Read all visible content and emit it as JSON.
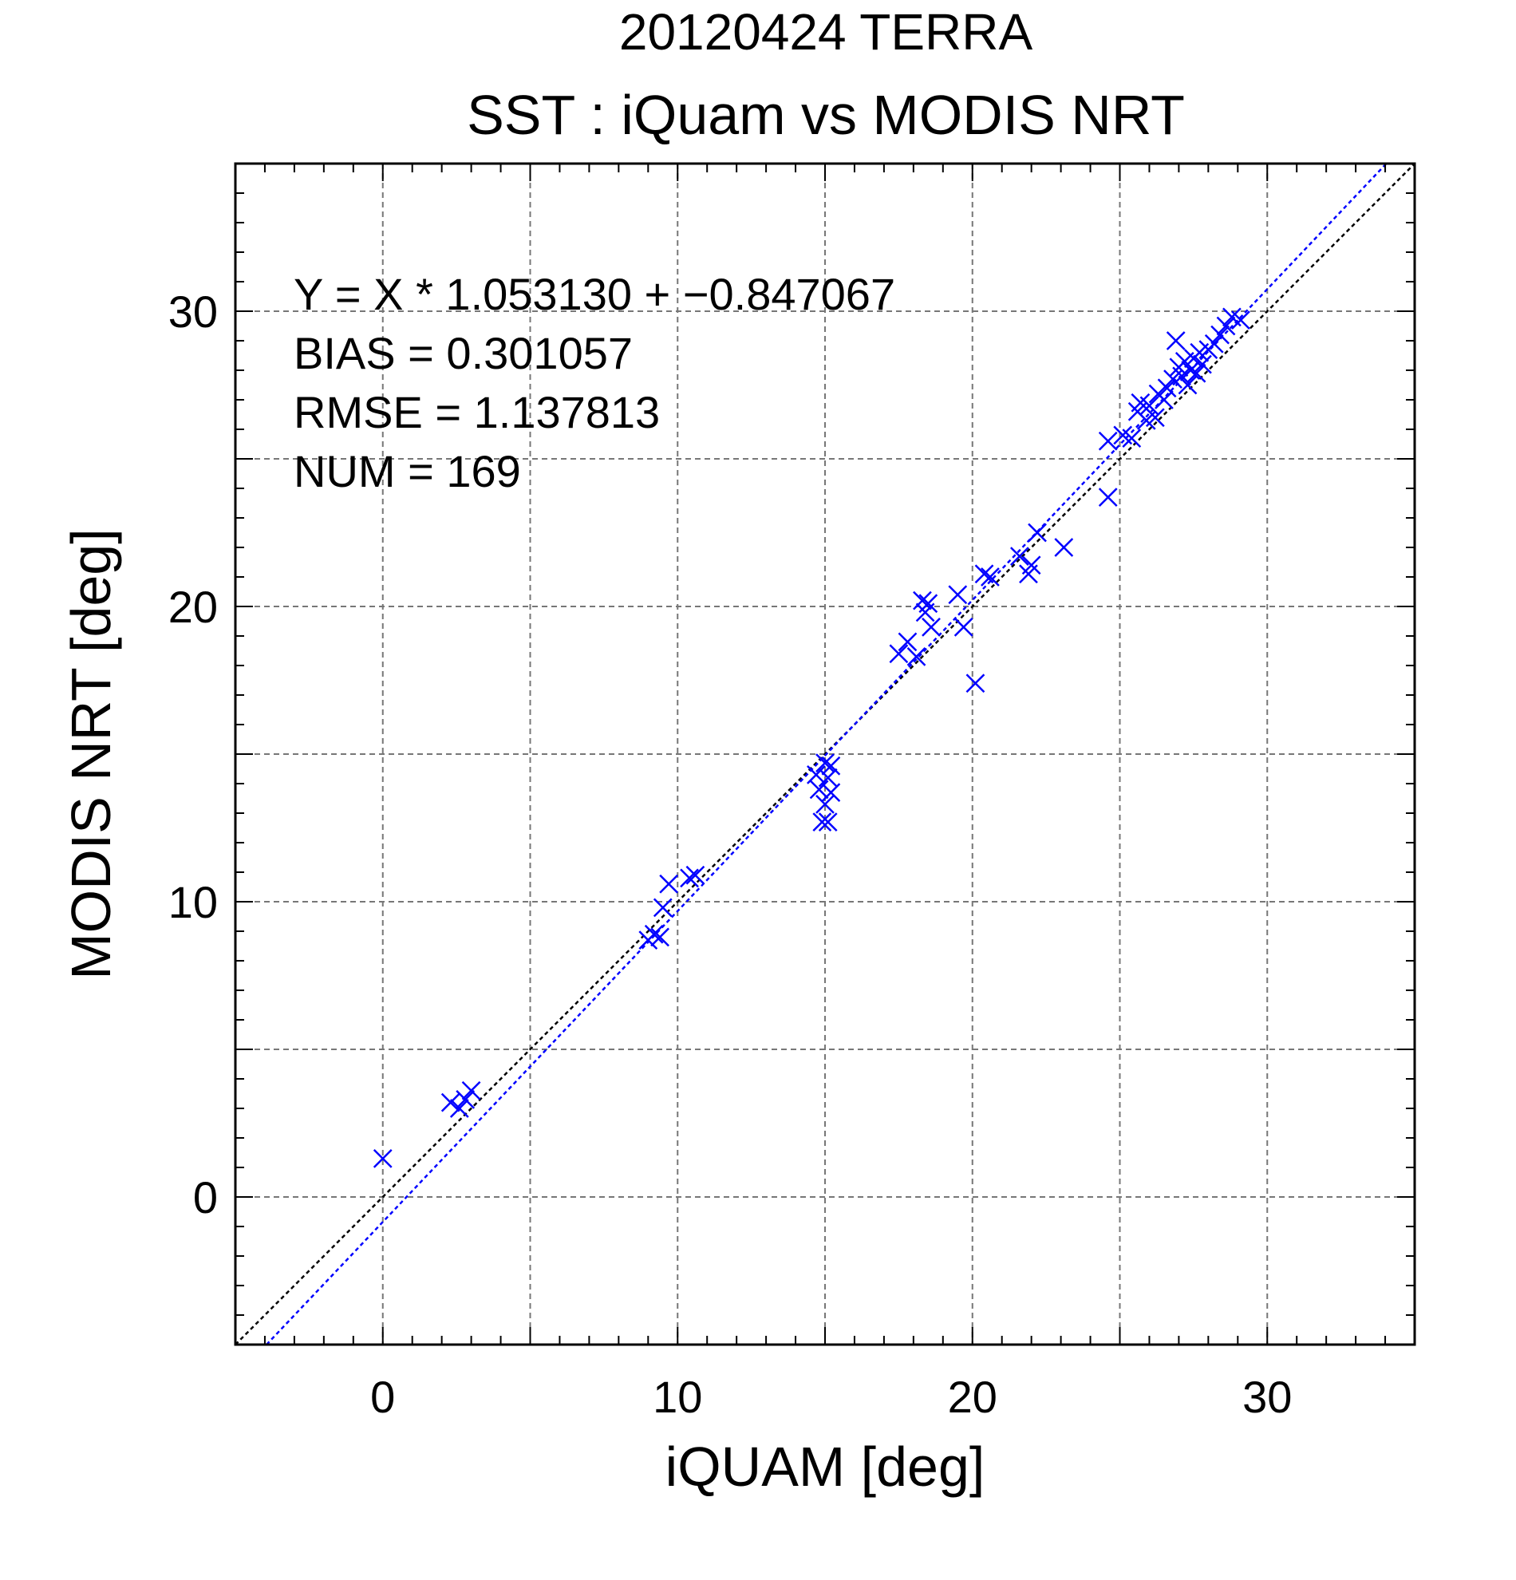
{
  "chart_data": {
    "type": "scatter",
    "title": "20120424 TERRA",
    "subtitle": "SST : iQuam vs MODIS NRT",
    "xlabel": "iQUAM [deg]",
    "ylabel": "MODIS NRT [deg]",
    "xlim": [
      -5,
      35
    ],
    "ylim": [
      -5,
      35
    ],
    "xticks": [
      0,
      10,
      20,
      30
    ],
    "yticks": [
      0,
      10,
      20,
      30
    ],
    "grid": true,
    "annotations": [
      "Y = X * 1.053130 + −0.847067",
      "BIAS = 0.301057",
      "RMSE = 1.137813",
      "NUM = 169"
    ],
    "colors": {
      "points": "#0000ff",
      "fit_line": "#0000ff",
      "identity_line": "#000000",
      "title": "#808080"
    },
    "fit": {
      "slope": 1.05313,
      "intercept": -0.847067
    },
    "series": [
      {
        "marker": "x",
        "x": [
          0.0,
          2.3,
          2.6,
          2.8,
          3.0,
          9.0,
          9.2,
          9.4,
          9.5,
          9.7,
          10.4,
          10.6,
          14.7,
          14.8,
          14.9,
          15.0,
          15.0,
          15.1,
          15.1,
          15.2,
          15.2,
          17.5,
          17.8,
          18.1,
          18.3,
          18.4,
          18.5,
          18.6,
          19.5,
          19.7,
          20.1,
          20.4,
          20.6,
          21.6,
          21.9,
          22.0,
          22.2,
          23.1,
          24.6,
          24.6,
          25.1,
          25.4,
          25.6,
          25.7,
          25.9,
          26.0,
          26.2,
          26.3,
          26.5,
          26.6,
          26.8,
          26.9,
          27.0,
          27.1,
          27.2,
          27.3,
          27.4,
          27.5,
          27.6,
          27.7,
          27.8,
          28.0,
          28.2,
          28.4,
          28.6,
          28.8,
          29.1
        ],
        "y": [
          1.3,
          3.2,
          3.0,
          3.3,
          3.6,
          8.7,
          8.9,
          8.8,
          9.8,
          10.6,
          10.8,
          10.9,
          14.3,
          13.8,
          12.7,
          14.7,
          13.3,
          12.7,
          14.2,
          14.6,
          13.7,
          18.4,
          18.8,
          18.3,
          20.2,
          19.8,
          20.1,
          19.3,
          20.4,
          19.3,
          17.4,
          21.1,
          21.0,
          21.7,
          21.1,
          21.4,
          22.5,
          22.0,
          25.6,
          23.7,
          25.8,
          25.7,
          26.6,
          26.9,
          26.3,
          26.8,
          26.4,
          27.2,
          27.0,
          27.4,
          27.7,
          29.0,
          28.1,
          27.8,
          28.3,
          27.5,
          28.0,
          28.4,
          27.9,
          28.6,
          28.2,
          28.7,
          28.9,
          29.2,
          29.5,
          29.8,
          29.7
        ]
      }
    ]
  }
}
